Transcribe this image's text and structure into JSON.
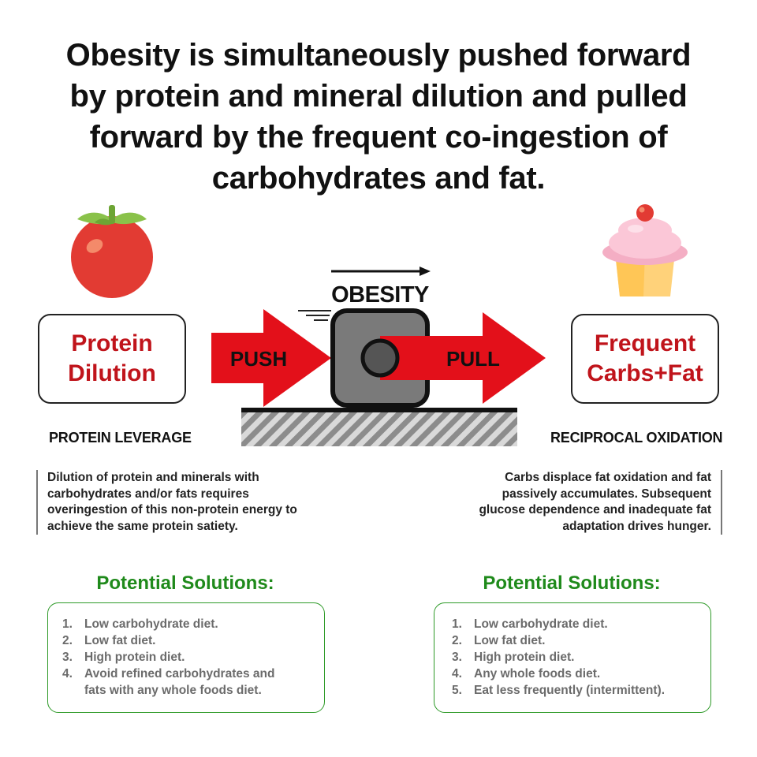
{
  "title": {
    "lines": [
      "Obesity is simultaneously pushed forward",
      "by protein and mineral dilution and pulled",
      "forward by the frequent co-ingestion of",
      "carbohydrates and fat."
    ]
  },
  "center": {
    "block_label": "OBESITY",
    "push_label": "PUSH",
    "pull_label": "PULL"
  },
  "left": {
    "icon": "tomato-icon",
    "box_lines": [
      "Protein",
      "Dilution"
    ],
    "mechanism": "PROTEIN LEVERAGE",
    "description_lines": [
      "Dilution of protein and minerals with",
      "carbohydrates and/or fats requires",
      "overingestion of this non-protein energy to",
      "achieve the same protein satiety."
    ],
    "solutions_title": "Potential Solutions:",
    "solutions": [
      {
        "num": "1.",
        "lines": [
          "Low carbohydrate diet."
        ]
      },
      {
        "num": "2.",
        "lines": [
          "Low fat diet."
        ]
      },
      {
        "num": "3.",
        "lines": [
          "High protein diet."
        ]
      },
      {
        "num": "4.",
        "lines": [
          "Avoid refined carbohydrates and",
          "fats with any whole foods diet."
        ]
      }
    ]
  },
  "right": {
    "icon": "cupcake-icon",
    "box_lines": [
      "Frequent",
      "Carbs+Fat"
    ],
    "mechanism": "RECIPROCAL OXIDATION",
    "description_lines": [
      "Carbs displace fat oxidation and fat",
      "passively accumulates. Subsequent",
      "glucose dependence and inadequate fat",
      "adaptation drives hunger."
    ],
    "solutions_title": "Potential Solutions:",
    "solutions": [
      {
        "num": "1.",
        "lines": [
          "Low carbohydrate diet."
        ]
      },
      {
        "num": "2.",
        "lines": [
          "Low fat diet."
        ]
      },
      {
        "num": "3.",
        "lines": [
          "High protein diet."
        ]
      },
      {
        "num": "4.",
        "lines": [
          "Any whole foods diet."
        ]
      },
      {
        "num": "5.",
        "lines": [
          "Eat less frequently (intermittent)."
        ]
      }
    ]
  },
  "colors": {
    "accent_red": "#c0141b",
    "arrow_red": "#e3101a",
    "solution_green": "#1f8a1b",
    "solution_border": "#2e9a28"
  }
}
